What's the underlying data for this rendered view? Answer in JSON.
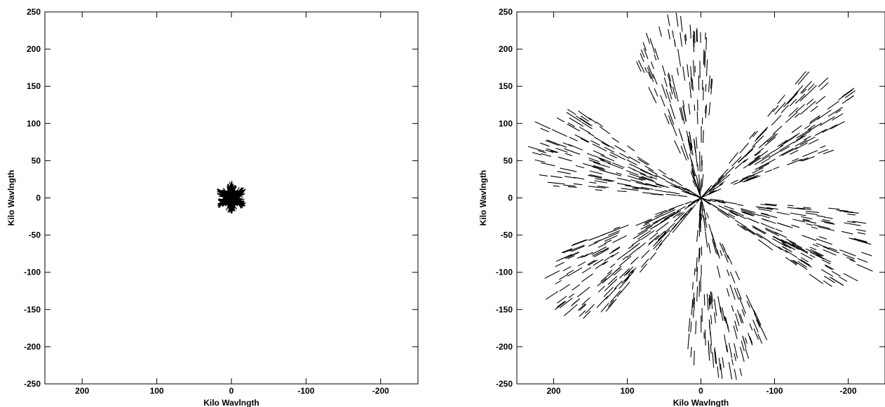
{
  "chart_data": [
    {
      "type": "scatter",
      "description_role": "uv-coverage-left",
      "xlabel": "Kilo Wavlngth",
      "ylabel": "Kilo Wavlngth",
      "xlim": [
        250,
        -250
      ],
      "ylim": [
        -250,
        250
      ],
      "x_reversed": true,
      "xticks": [
        200,
        100,
        0,
        -100,
        -200
      ],
      "yticks": [
        250,
        200,
        150,
        100,
        50,
        0,
        -50,
        -100,
        -150,
        -200,
        -250
      ],
      "coverage": {
        "pattern": "six-pointed star of baseline tracks",
        "max_radius": 22,
        "arm_angles_deg": [
          90,
          30,
          -30,
          -90,
          -150,
          150
        ]
      }
    },
    {
      "type": "scatter",
      "description_role": "uv-coverage-right",
      "xlabel": "Kilo Wavlngth",
      "ylabel": "Kilo Wavlngth",
      "xlim": [
        250,
        -250
      ],
      "ylim": [
        -250,
        250
      ],
      "x_reversed": true,
      "xticks": [
        200,
        100,
        0,
        -100,
        -200
      ],
      "yticks": [
        250,
        200,
        150,
        100,
        50,
        0,
        -50,
        -100,
        -150,
        -200,
        -250
      ],
      "coverage": {
        "pattern": "six-pointed star of baseline tracks",
        "max_radius": 250,
        "arm_angles_deg": [
          80,
          20,
          -35,
          -100,
          -160,
          145
        ]
      }
    }
  ]
}
